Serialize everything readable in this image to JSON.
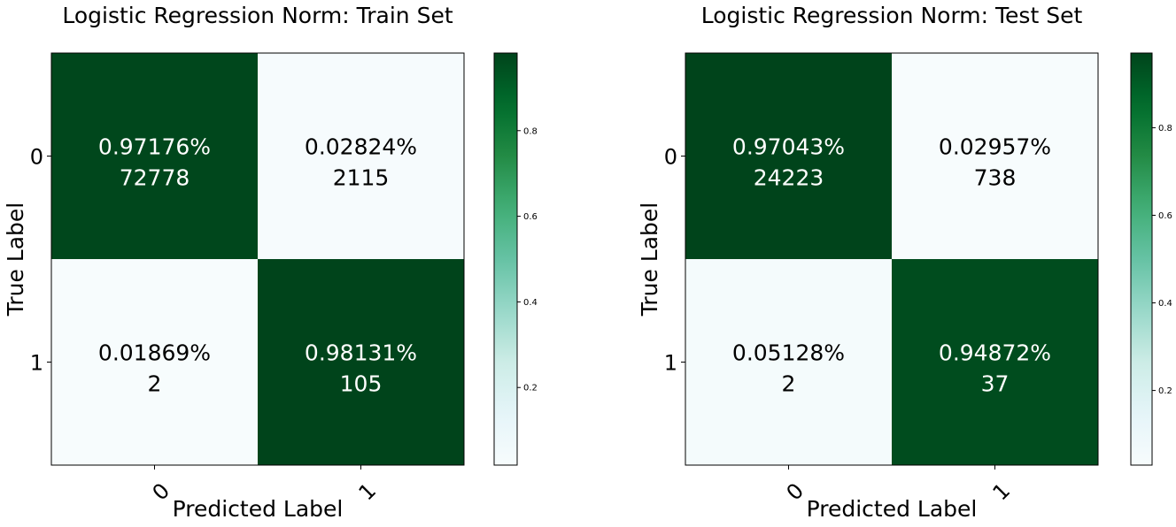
{
  "chart_data": [
    {
      "type": "heatmap",
      "title": "Logistic Regression Norm: Train Set",
      "xlabel": "Predicted Label",
      "ylabel": "True Label",
      "x_ticks": [
        "0",
        "1"
      ],
      "y_ticks": [
        "0",
        "1"
      ],
      "cells": [
        [
          {
            "pct": "0.97176%",
            "count": "72778",
            "value": 0.97176
          },
          {
            "pct": "0.02824%",
            "count": "2115",
            "value": 0.02824
          }
        ],
        [
          {
            "pct": "0.01869%",
            "count": "2",
            "value": 0.01869
          },
          {
            "pct": "0.98131%",
            "count": "105",
            "value": 0.98131
          }
        ]
      ],
      "colorbar": {
        "vmin": 0.01869,
        "vmax": 0.98131,
        "ticks": [
          "0.2",
          "0.4",
          "0.6",
          "0.8"
        ],
        "tick_values": [
          0.2,
          0.4,
          0.6,
          0.8
        ]
      }
    },
    {
      "type": "heatmap",
      "title": "Logistic Regression Norm: Test Set",
      "xlabel": "Predicted Label",
      "ylabel": "True Label",
      "x_ticks": [
        "0",
        "1"
      ],
      "y_ticks": [
        "0",
        "1"
      ],
      "cells": [
        [
          {
            "pct": "0.97043%",
            "count": "24223",
            "value": 0.97043
          },
          {
            "pct": "0.02957%",
            "count": "738",
            "value": 0.02957
          }
        ],
        [
          {
            "pct": "0.05128%",
            "count": "2",
            "value": 0.05128
          },
          {
            "pct": "0.94872%",
            "count": "37",
            "value": 0.94872
          }
        ]
      ],
      "colorbar": {
        "vmin": 0.02957,
        "vmax": 0.97043,
        "ticks": [
          "0.2",
          "0.4",
          "0.6",
          "0.8"
        ],
        "tick_values": [
          0.2,
          0.4,
          0.6,
          0.8
        ]
      }
    }
  ],
  "colors": {
    "low": "#f7fcfd",
    "high": "#00441b",
    "dark_text": "#000000",
    "light_text": "#ffffff"
  }
}
